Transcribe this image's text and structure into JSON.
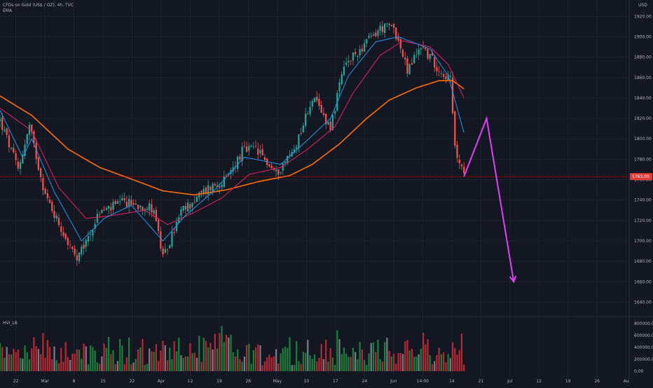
{
  "header": {
    "symbol_line": "CFDs on Gold (US$ / OZ), 4h, TVC",
    "indicator_line": "EMA",
    "currency": "USD",
    "volume_indicator": "HVI_LB"
  },
  "colors": {
    "background": "#131722",
    "up": "#26a69a",
    "down": "#ef5350",
    "ema_fast": "#2196f3",
    "ema_mid": "#e91e63",
    "ema_slow": "#ff6d00",
    "projection": "#e040fb",
    "price_line": "#b71c1c",
    "axis_text": "#b2b5be"
  },
  "chart_data": {
    "type": "candlestick",
    "y_axis": {
      "ticks": [
        "1920.00",
        "1900.00",
        "1880.00",
        "1860.00",
        "1840.00",
        "1820.00",
        "1800.00",
        "1780.00",
        "1760.00",
        "1740.00",
        "1720.00",
        "1700.00",
        "1680.00",
        "1660.00",
        "1640.00"
      ],
      "range": [
        1630,
        1936
      ]
    },
    "volume_axis": {
      "ticks": [
        "800000.00",
        "600000.00",
        "400000.00",
        "200000.00",
        "0.00"
      ],
      "range": [
        0,
        800000
      ]
    },
    "x_axis": {
      "labels": [
        "22",
        "Mar",
        "8",
        "15",
        "22",
        "Apr",
        "12",
        "19",
        "26",
        "May",
        "10",
        "17",
        "24",
        "Jun",
        "14:00",
        "14",
        "21",
        "Jul",
        "12",
        "19",
        "26",
        "Au"
      ],
      "data_end_index": 205,
      "last_index": 278
    },
    "current_price": {
      "value": 1763,
      "label": "1763.00"
    },
    "projection": {
      "name": "projection",
      "points": [
        {
          "t": 205,
          "price": 1763
        },
        {
          "t": 215,
          "price": 1820
        },
        {
          "t": 227,
          "price": 1660
        }
      ]
    },
    "close_anchors": [
      {
        "t": 0,
        "price": 1818
      },
      {
        "t": 8,
        "price": 1770
      },
      {
        "t": 13,
        "price": 1812
      },
      {
        "t": 20,
        "price": 1745
      },
      {
        "t": 34,
        "price": 1680
      },
      {
        "t": 44,
        "price": 1728
      },
      {
        "t": 55,
        "price": 1738
      },
      {
        "t": 68,
        "price": 1732
      },
      {
        "t": 72,
        "price": 1682
      },
      {
        "t": 80,
        "price": 1728
      },
      {
        "t": 92,
        "price": 1752
      },
      {
        "t": 100,
        "price": 1760
      },
      {
        "t": 107,
        "price": 1788
      },
      {
        "t": 113,
        "price": 1790
      },
      {
        "t": 122,
        "price": 1766
      },
      {
        "t": 130,
        "price": 1790
      },
      {
        "t": 138,
        "price": 1840
      },
      {
        "t": 146,
        "price": 1812
      },
      {
        "t": 152,
        "price": 1870
      },
      {
        "t": 160,
        "price": 1890
      },
      {
        "t": 168,
        "price": 1908
      },
      {
        "t": 174,
        "price": 1910
      },
      {
        "t": 180,
        "price": 1866
      },
      {
        "t": 186,
        "price": 1892
      },
      {
        "t": 194,
        "price": 1868
      },
      {
        "t": 199,
        "price": 1858
      },
      {
        "t": 201,
        "price": 1790
      },
      {
        "t": 205,
        "price": 1763
      }
    ],
    "ema_anchors": {
      "fast": [
        {
          "t": 0,
          "price": 1828
        },
        {
          "t": 10,
          "price": 1782
        },
        {
          "t": 14,
          "price": 1800
        },
        {
          "t": 24,
          "price": 1748
        },
        {
          "t": 36,
          "price": 1700
        },
        {
          "t": 46,
          "price": 1722
        },
        {
          "t": 58,
          "price": 1735
        },
        {
          "t": 72,
          "price": 1700
        },
        {
          "t": 82,
          "price": 1725
        },
        {
          "t": 94,
          "price": 1748
        },
        {
          "t": 108,
          "price": 1782
        },
        {
          "t": 124,
          "price": 1775
        },
        {
          "t": 134,
          "price": 1795
        },
        {
          "t": 146,
          "price": 1820
        },
        {
          "t": 154,
          "price": 1862
        },
        {
          "t": 166,
          "price": 1895
        },
        {
          "t": 176,
          "price": 1900
        },
        {
          "t": 190,
          "price": 1888
        },
        {
          "t": 198,
          "price": 1862
        },
        {
          "t": 205,
          "price": 1806
        }
      ],
      "mid": [
        {
          "t": 0,
          "price": 1830
        },
        {
          "t": 14,
          "price": 1808
        },
        {
          "t": 26,
          "price": 1752
        },
        {
          "t": 38,
          "price": 1722
        },
        {
          "t": 50,
          "price": 1725
        },
        {
          "t": 64,
          "price": 1730
        },
        {
          "t": 74,
          "price": 1716
        },
        {
          "t": 86,
          "price": 1728
        },
        {
          "t": 98,
          "price": 1742
        },
        {
          "t": 110,
          "price": 1765
        },
        {
          "t": 124,
          "price": 1772
        },
        {
          "t": 136,
          "price": 1790
        },
        {
          "t": 148,
          "price": 1812
        },
        {
          "t": 156,
          "price": 1845
        },
        {
          "t": 168,
          "price": 1882
        },
        {
          "t": 178,
          "price": 1896
        },
        {
          "t": 190,
          "price": 1890
        },
        {
          "t": 198,
          "price": 1873
        },
        {
          "t": 205,
          "price": 1840
        }
      ],
      "slow": [
        {
          "t": 0,
          "price": 1842
        },
        {
          "t": 14,
          "price": 1823
        },
        {
          "t": 30,
          "price": 1790
        },
        {
          "t": 44,
          "price": 1772
        },
        {
          "t": 60,
          "price": 1759
        },
        {
          "t": 72,
          "price": 1749
        },
        {
          "t": 86,
          "price": 1745
        },
        {
          "t": 100,
          "price": 1750
        },
        {
          "t": 114,
          "price": 1758
        },
        {
          "t": 128,
          "price": 1764
        },
        {
          "t": 138,
          "price": 1775
        },
        {
          "t": 150,
          "price": 1795
        },
        {
          "t": 162,
          "price": 1820
        },
        {
          "t": 172,
          "price": 1838
        },
        {
          "t": 184,
          "price": 1850
        },
        {
          "t": 194,
          "price": 1857
        },
        {
          "t": 200,
          "price": 1857
        },
        {
          "t": 205,
          "price": 1849
        }
      ]
    },
    "volume": {
      "min": 100000,
      "max": 780000
    }
  }
}
